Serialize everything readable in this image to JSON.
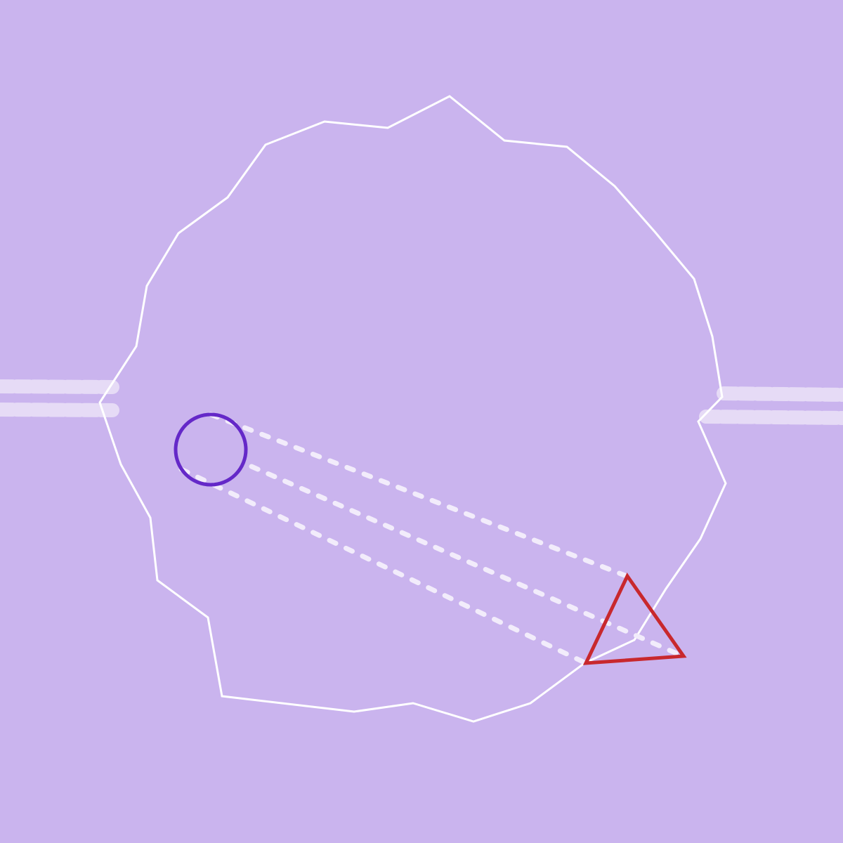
{
  "colors": {
    "background": "#cab4ee",
    "outline": "#ffffff",
    "road": "#e6dbf6",
    "circle": "#6428c8",
    "triangle": "#c8282d",
    "projection_lines": "#f2ecfb"
  },
  "shapes": {
    "region": "irregular-polygon",
    "circle": "circle",
    "triangle": "triangle"
  }
}
